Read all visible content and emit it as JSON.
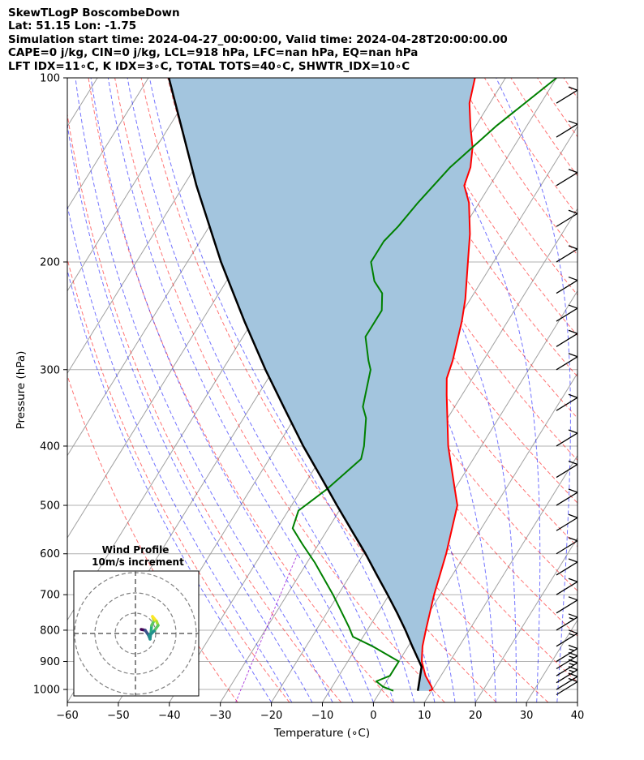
{
  "header": {
    "line1": "SkewTLogP BoscombeDown",
    "line2": "Lat: 51.15   Lon: -1.75",
    "line3": "Simulation start time: 2024-04-27_00:00:00, Valid time: 2024-04-28T20:00:00.00",
    "line4": "CAPE=0 j/kg, CIN=0 j/kg, LCL=918 hPa, LFC=nan hPa, EQ=nan hPa",
    "line5": "LFT IDX=11∘C, K IDX=3∘C, TOTAL TOTS=40∘C, SHWTR_IDX=10∘C"
  },
  "colors": {
    "temperature": "#ff0000",
    "dewpoint": "#008000",
    "parcel": "#000000",
    "cape_fill": "#a3c5de",
    "dry_adiabat": "#ff0000",
    "moist_adiabat": "#0000ff",
    "mixing_ratio": "#9400d3",
    "isotherm": "#a0a0a0"
  },
  "chart_data": {
    "type": "skewt",
    "xlabel": "Temperature (∘C)",
    "ylabel": "Pressure (hPa)",
    "xlim": [
      -60,
      40
    ],
    "ylim": [
      1050,
      100
    ],
    "x_ticks": [
      -60,
      -50,
      -40,
      -30,
      -20,
      -10,
      0,
      10,
      20,
      30,
      40
    ],
    "y_ticks": [
      1000,
      900,
      800,
      700,
      600,
      500,
      400,
      300,
      200,
      100
    ],
    "y_scale": "log",
    "grid": true,
    "series": [
      {
        "key": "temperature",
        "points": [
          [
            1005,
            9.5
          ],
          [
            1000,
            10
          ],
          [
            990,
            9.5
          ],
          [
            950,
            7
          ],
          [
            900,
            4.5
          ],
          [
            850,
            2.8
          ],
          [
            800,
            1.5
          ],
          [
            700,
            -1.2
          ],
          [
            600,
            -3.8
          ],
          [
            500,
            -7.5
          ],
          [
            470,
            -10
          ],
          [
            400,
            -16.5
          ],
          [
            330,
            -23
          ],
          [
            310,
            -25
          ],
          [
            290,
            -26
          ],
          [
            250,
            -29
          ],
          [
            230,
            -31
          ],
          [
            200,
            -35
          ],
          [
            180,
            -38
          ],
          [
            160,
            -42
          ],
          [
            150,
            -45
          ],
          [
            140,
            -46
          ],
          [
            130,
            -48
          ],
          [
            120,
            -51
          ],
          [
            110,
            -54
          ],
          [
            100,
            -56
          ]
        ]
      },
      {
        "key": "dewpoint",
        "points": [
          [
            1005,
            2.5
          ],
          [
            990,
            0
          ],
          [
            970,
            -2
          ],
          [
            950,
            0
          ],
          [
            900,
            0
          ],
          [
            850,
            -7
          ],
          [
            820,
            -12
          ],
          [
            790,
            -14
          ],
          [
            700,
            -21
          ],
          [
            620,
            -28.5
          ],
          [
            580,
            -33
          ],
          [
            545,
            -37
          ],
          [
            510,
            -38
          ],
          [
            470,
            -35
          ],
          [
            420,
            -32
          ],
          [
            400,
            -33
          ],
          [
            360,
            -36
          ],
          [
            345,
            -38
          ],
          [
            300,
            -41
          ],
          [
            290,
            -42.5
          ],
          [
            265,
            -46
          ],
          [
            250,
            -46
          ],
          [
            240,
            -46
          ],
          [
            225,
            -48
          ],
          [
            215,
            -51
          ],
          [
            200,
            -54
          ],
          [
            185,
            -54
          ],
          [
            175,
            -53
          ],
          [
            160,
            -52
          ],
          [
            140,
            -50
          ],
          [
            120,
            -46
          ],
          [
            100,
            -40
          ]
        ]
      },
      {
        "key": "parcel",
        "points": [
          [
            1005,
            7.3
          ],
          [
            918,
            5.1
          ],
          [
            850,
            0.8
          ],
          [
            800,
            -2.5
          ],
          [
            750,
            -6.2
          ],
          [
            700,
            -10.3
          ],
          [
            650,
            -14.8
          ],
          [
            600,
            -19.6
          ],
          [
            550,
            -25.1
          ],
          [
            500,
            -31.1
          ],
          [
            450,
            -37.6
          ],
          [
            400,
            -44.9
          ],
          [
            350,
            -52.7
          ],
          [
            300,
            -61.6
          ],
          [
            250,
            -71.6
          ],
          [
            200,
            -83.4
          ],
          [
            150,
            -97.5
          ],
          [
            100,
            -116
          ]
        ]
      }
    ],
    "cape_fill": "between temperature and parcel",
    "wind_barbs": [
      {
        "p": 1020,
        "speed": 10
      },
      {
        "p": 1000,
        "speed": 10
      },
      {
        "p": 975,
        "speed": 15
      },
      {
        "p": 950,
        "speed": 15
      },
      {
        "p": 925,
        "speed": 15
      },
      {
        "p": 900,
        "speed": 15
      },
      {
        "p": 850,
        "speed": 15
      },
      {
        "p": 800,
        "speed": 15
      },
      {
        "p": 750,
        "speed": 10
      },
      {
        "p": 700,
        "speed": 10
      },
      {
        "p": 650,
        "speed": 10
      },
      {
        "p": 600,
        "speed": 10
      },
      {
        "p": 550,
        "speed": 10
      },
      {
        "p": 500,
        "speed": 10
      },
      {
        "p": 450,
        "speed": 10
      },
      {
        "p": 400,
        "speed": 10
      },
      {
        "p": 350,
        "speed": 10
      },
      {
        "p": 300,
        "speed": 10
      },
      {
        "p": 275,
        "speed": 10
      },
      {
        "p": 250,
        "speed": 10
      },
      {
        "p": 225,
        "speed": 10
      },
      {
        "p": 200,
        "speed": 10
      },
      {
        "p": 175,
        "speed": 10
      },
      {
        "p": 150,
        "speed": 10
      },
      {
        "p": 125,
        "speed": 10
      },
      {
        "p": 110,
        "speed": 10
      }
    ],
    "inset": {
      "title": "Wind Profile",
      "subtitle": "10m/s increment",
      "rings_ms": [
        10,
        20,
        30
      ]
    }
  }
}
